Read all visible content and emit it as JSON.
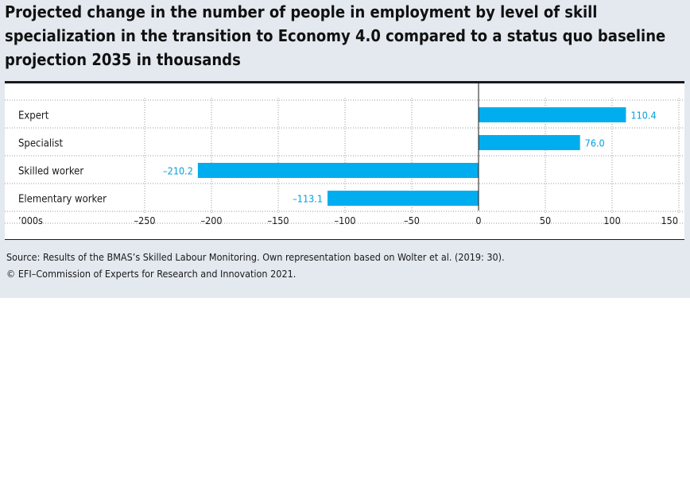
{
  "title": "Projected change in the number of people in employment by level of skill specialization in the transition to Economy 4.0 compared to a status quo baseline projection 2035 in thousands",
  "source_text": "Source: Results of the BMAS’s Skilled Labour Monitoring. Own representation based on Wolter et al. (2019: 30).",
  "copyright_text": "© EFI–Commission of Experts for Research and Innovation 2021.",
  "colors": {
    "bar": "#00aeef",
    "value_label": "#00a0dc",
    "panel": "#e3e9ef"
  },
  "chart_data": {
    "type": "bar",
    "orientation": "horizontal",
    "categories": [
      "Expert",
      "Specialist",
      "Skilled worker",
      "Elementary worker"
    ],
    "values": [
      110.4,
      76.0,
      -210.2,
      -113.1
    ],
    "value_labels": [
      "110.4",
      "76.0",
      "–210.2",
      "–113.1"
    ],
    "unit_label": "’000s",
    "xlim": [
      -250,
      150
    ],
    "ticks": [
      -250,
      -200,
      -150,
      -100,
      -50,
      0,
      50,
      100,
      150
    ],
    "tick_labels": [
      "–250",
      "–200",
      "–150",
      "–100",
      "–50",
      "0",
      "50",
      "100",
      "150"
    ],
    "grid": true
  }
}
